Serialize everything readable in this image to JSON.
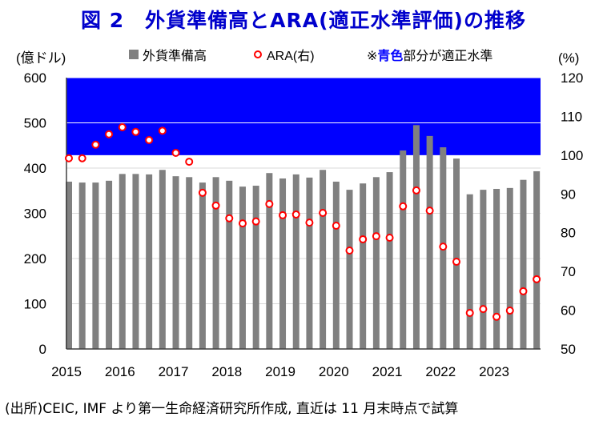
{
  "title": "図 2　外貨準備高とARA(適正水準評価)の推移",
  "source": "(出所)CEIC, IMF より第一生命経済研究所作成, 直近は 11 月末時点で試算",
  "chart_data": {
    "type": "bar",
    "title": "図 2　外貨準備高とARA(適正水準評価)の推移",
    "ylabel": "(億ドル)",
    "ylabel_right": "(%)",
    "ylim": [
      0,
      600
    ],
    "ylim_right": [
      50,
      120
    ],
    "yticks": [
      "0",
      "100",
      "200",
      "300",
      "400",
      "500",
      "600"
    ],
    "yticks_right": [
      "50",
      "60",
      "70",
      "80",
      "90",
      "100",
      "110",
      "120"
    ],
    "xticks": [
      "2015",
      "2016",
      "2017",
      "2018",
      "2019",
      "2020",
      "2021",
      "2022",
      "2023"
    ],
    "grid": true,
    "legend": {
      "bars": "外貨準備高",
      "points": "ARA(右)",
      "note_prefix": "※",
      "note_highlight": "青色",
      "note_suffix": "部分が適正水準",
      "placement": "top"
    },
    "adequate_band_right": [
      100,
      120
    ],
    "colors": {
      "bars": "#808080",
      "points": "#ff0000",
      "band": "#0000ff",
      "title": "#0000cc"
    },
    "x": [
      "2015Q1",
      "2015Q2",
      "2015Q3",
      "2015Q4",
      "2016Q1",
      "2016Q2",
      "2016Q3",
      "2016Q4",
      "2017Q1",
      "2017Q2",
      "2017Q3",
      "2017Q4",
      "2018Q1",
      "2018Q2",
      "2018Q3",
      "2018Q4",
      "2019Q1",
      "2019Q2",
      "2019Q3",
      "2019Q4",
      "2020Q1",
      "2020Q2",
      "2020Q3",
      "2020Q4",
      "2021Q1",
      "2021Q2",
      "2021Q3",
      "2021Q4",
      "2022Q1",
      "2022Q2",
      "2022Q3",
      "2022Q4",
      "2023Q1",
      "2023Q2",
      "2023Q3",
      "2023Q4"
    ],
    "series": [
      {
        "name": "外貨準備高",
        "axis": "left",
        "kind": "bar",
        "values": [
          370,
          368,
          368,
          372,
          387,
          387,
          386,
          396,
          382,
          380,
          368,
          380,
          372,
          359,
          361,
          389,
          377,
          386,
          379,
          396,
          370,
          352,
          366,
          380,
          391,
          439,
          495,
          471,
          446,
          421,
          342,
          352,
          354,
          356,
          374,
          393
        ]
      },
      {
        "name": "ARA(右)",
        "axis": "right",
        "kind": "scatter",
        "values": [
          99.2,
          99.2,
          102.7,
          105.4,
          107.2,
          106.0,
          103.9,
          106.3,
          100.6,
          98.3,
          90.3,
          87.0,
          83.7,
          82.4,
          82.9,
          87.4,
          84.5,
          84.7,
          82.6,
          85.1,
          81.8,
          75.4,
          78.3,
          79.1,
          78.7,
          86.8,
          90.9,
          85.7,
          76.4,
          72.5,
          59.3,
          60.3,
          58.3,
          59.9,
          64.9,
          68.0
        ]
      }
    ]
  }
}
